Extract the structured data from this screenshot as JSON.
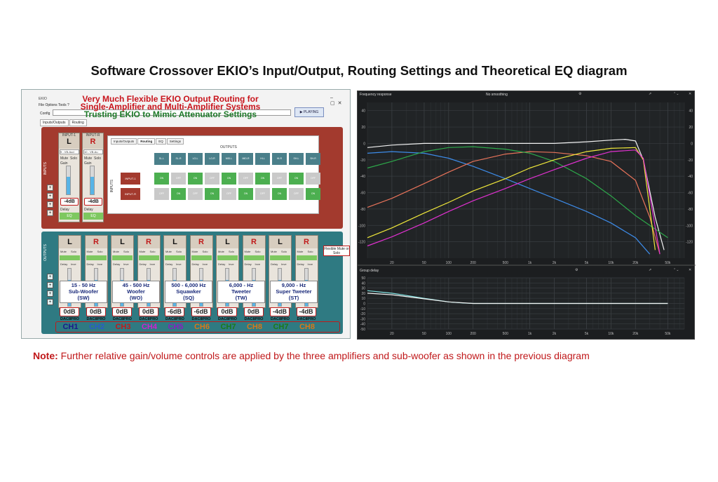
{
  "page": {
    "title": "Software Crossover EKIO’s Input/Output, Routing Settings and Theoretical EQ diagram",
    "note_label": "Note:",
    "note_text": " Further relative gain/volume controls are applied by the three amplifiers and sub-woofer  as shown in the previous diagram"
  },
  "ekio": {
    "window_title": "EKIO",
    "menu": "File  Options  Tools  ?",
    "config_label": "Config",
    "play_button": "▶ PLAYING",
    "tabs": [
      "Inputs/Outputs",
      "Routing"
    ],
    "banner": {
      "line1": "Very Much Flexible EKIO Output Routing for",
      "line2": "Single-Amplifier and Multi-Amplifier Systems",
      "line3": "Trusting EKIO to Mimic Attenuator Settings"
    },
    "inputs_side_label": "INPUTS",
    "outputs_side_label": "OUTPUTS",
    "inputs": [
      {
        "name": "INPUT-1",
        "letter": "L",
        "source": "9 - VB-Aud",
        "gain": "-4dB",
        "eq": "EQ",
        "fill": 0.62
      },
      {
        "name": "INPUT-R",
        "letter": "R",
        "source": "10 - VB-Au",
        "gain": "-4dB",
        "eq": "EQ",
        "fill": 0.62
      }
    ],
    "strip_buttons": {
      "mute": "Mute",
      "solo": "Solo",
      "gain": "Gain",
      "delay": "Delay",
      "invert": "Inve"
    },
    "routing": {
      "tabs": [
        "Inputs/Outputs",
        "Routing",
        "EQ",
        "Settings"
      ],
      "outputs_label": "OUTPUTS",
      "inputs_label": "INPUTS",
      "columns": [
        "SL-L",
        "SL-R",
        "LO-L",
        "LO-R",
        "MID-L",
        "MID-R",
        "HI-L",
        "HI-R",
        "SH-L",
        "SH-R"
      ],
      "rows": [
        {
          "name": "INPUT-1",
          "cells": [
            "ON",
            "OFF",
            "ON",
            "OFF",
            "ON",
            "OFF",
            "ON",
            "OFF",
            "ON",
            "OFF"
          ]
        },
        {
          "name": "INPUT-R",
          "cells": [
            "OFF",
            "ON",
            "OFF",
            "ON",
            "OFF",
            "ON",
            "OFF",
            "ON",
            "OFF",
            "ON"
          ]
        }
      ]
    },
    "outputs": [
      {
        "letter": "L",
        "gain": "0dB",
        "dac": "DAC8PRO",
        "ch": "CH1",
        "color": "#1a1a8a"
      },
      {
        "letter": "R",
        "gain": "0dB",
        "dac": "DAC8PRO",
        "ch": "CH2",
        "color": "#2a5cc8"
      },
      {
        "letter": "L",
        "gain": "0dB",
        "dac": "DAC8PRO",
        "ch": "CH3",
        "color": "#c01a1a"
      },
      {
        "letter": "R",
        "gain": "0dB",
        "dac": "DAC8PRO",
        "ch": "CH4",
        "color": "#d020d0"
      },
      {
        "letter": "L",
        "gain": "-6dB",
        "dac": "DAC8PRO",
        "ch": "CH5",
        "color": "#8a20c0"
      },
      {
        "letter": "R",
        "gain": "-6dB",
        "dac": "DAC8PRO",
        "ch": "CH6",
        "color": "#d87818"
      },
      {
        "letter": "L",
        "gain": "0dB",
        "dac": "DAC8PRO",
        "ch": "CH7",
        "color": "#1a7a1a"
      },
      {
        "letter": "R",
        "gain": "0dB",
        "dac": "DAC8PRO",
        "ch": "CH8",
        "color": "#d87818"
      },
      {
        "letter": "L",
        "gain": "-4dB",
        "dac": "DAC8PRO",
        "ch": "CH7",
        "color": "#1a7a1a"
      },
      {
        "letter": "R",
        "gain": "-4dB",
        "dac": "DAC8PRO",
        "ch": "CH8",
        "color": "#d87818"
      }
    ],
    "bands": [
      {
        "range": "15 - 50 Hz",
        "name": "Sub-Woofer",
        "abbr": "(SW)"
      },
      {
        "range": "45 - 500 Hz",
        "name": "Woofer",
        "abbr": "(WO)"
      },
      {
        "range": "500 - 6,000 Hz",
        "name": "Squawker",
        "abbr": "(SQ)"
      },
      {
        "range": "6,000 -  Hz",
        "name": "Tweeter",
        "abbr": "(TW)"
      },
      {
        "range": "9,000 -   Hz",
        "name": "Super Tweeter",
        "abbr": "(ST)"
      }
    ],
    "flexible_callout": "Flexible Mute or Solo"
  },
  "graph": {
    "fr_title": "Frequency response",
    "smoothing": "No smoothing",
    "gd_title": "Group delay",
    "colors": {
      "white": "#f2f2f2",
      "blue": "#3d8be8",
      "orange": "#e8735a",
      "green": "#2da84a",
      "yellow": "#f0e83a",
      "magenta": "#e030d0",
      "cyan": "#7fe0e0"
    }
  },
  "chart_data": [
    {
      "type": "line",
      "title": "Frequency response",
      "x_ticks": [
        "20",
        "50",
        "100",
        "200",
        "500",
        "1k",
        "2k",
        "5k",
        "10k",
        "20k",
        "50k"
      ],
      "x_tick_values": [
        20,
        50,
        100,
        200,
        500,
        1000,
        2000,
        5000,
        10000,
        20000,
        50000
      ],
      "y_ticks": [
        "40",
        "20",
        "0",
        "-20",
        "-40",
        "-60",
        "-80",
        "-100",
        "-120"
      ],
      "ylim": [
        -140,
        50
      ],
      "x_scale": "log",
      "series": [
        {
          "color": "white",
          "x": [
            10,
            20,
            50,
            100,
            200,
            500,
            1000,
            2000,
            5000,
            10000,
            15000,
            20000,
            25000,
            35000,
            45000
          ],
          "y": [
            -5,
            -2,
            0,
            0,
            0,
            0,
            0,
            0,
            2,
            4,
            5,
            3,
            -20,
            -90,
            -130
          ]
        },
        {
          "color": "blue",
          "x": [
            10,
            20,
            50,
            100,
            200,
            500,
            1000,
            2000,
            5000,
            10000,
            20000,
            30000
          ],
          "y": [
            -12,
            -10,
            -12,
            -18,
            -28,
            -43,
            -55,
            -67,
            -83,
            -97,
            -115,
            -135
          ]
        },
        {
          "color": "orange",
          "x": [
            10,
            20,
            50,
            100,
            200,
            500,
            1000,
            2000,
            5000,
            10000,
            20000,
            30000,
            40000
          ],
          "y": [
            -78,
            -67,
            -49,
            -35,
            -22,
            -13,
            -10,
            -11,
            -15,
            -22,
            -45,
            -90,
            -135
          ]
        },
        {
          "color": "green",
          "x": [
            10,
            20,
            50,
            100,
            200,
            500,
            1000,
            2000,
            5000,
            10000,
            20000,
            50000
          ],
          "y": [
            -30,
            -22,
            -10,
            -5,
            -4,
            -7,
            -12,
            -22,
            -43,
            -64,
            -88,
            -115
          ]
        },
        {
          "color": "yellow",
          "x": [
            10,
            20,
            50,
            100,
            200,
            500,
            1000,
            2000,
            5000,
            10000,
            20000,
            25000,
            35000
          ],
          "y": [
            -115,
            -103,
            -85,
            -72,
            -58,
            -43,
            -30,
            -20,
            -10,
            -6,
            -5,
            -20,
            -130
          ]
        },
        {
          "color": "magenta",
          "x": [
            10,
            20,
            50,
            100,
            200,
            500,
            1000,
            2000,
            5000,
            10000,
            20000,
            25000,
            40000
          ],
          "y": [
            -125,
            -114,
            -97,
            -83,
            -70,
            -55,
            -43,
            -32,
            -18,
            -10,
            -8,
            -18,
            -135
          ]
        }
      ]
    },
    {
      "type": "line",
      "title": "Group delay",
      "x_ticks": [
        "20",
        "50",
        "100",
        "200",
        "500",
        "1k",
        "2k",
        "5k",
        "10k",
        "20k",
        "50k"
      ],
      "x_tick_values": [
        20,
        50,
        100,
        200,
        500,
        1000,
        2000,
        5000,
        10000,
        20000,
        50000
      ],
      "y_ticks": [
        "50",
        "40",
        "30",
        "20",
        "10",
        "0",
        "-10",
        "-20",
        "-30",
        "-40",
        "-50"
      ],
      "ylim": [
        -50,
        50
      ],
      "x_scale": "log",
      "series": [
        {
          "color": "cyan",
          "x": [
            10,
            20,
            50,
            100,
            150,
            200,
            500,
            1000,
            10000,
            50000
          ],
          "y": [
            25,
            20,
            10,
            3,
            1,
            0,
            0,
            0,
            0,
            0
          ]
        },
        {
          "color": "white",
          "x": [
            10,
            20,
            50,
            100,
            200,
            500,
            1000,
            10000,
            50000
          ],
          "y": [
            20,
            17,
            9,
            3,
            0,
            0,
            0,
            0,
            0
          ]
        }
      ]
    }
  ]
}
